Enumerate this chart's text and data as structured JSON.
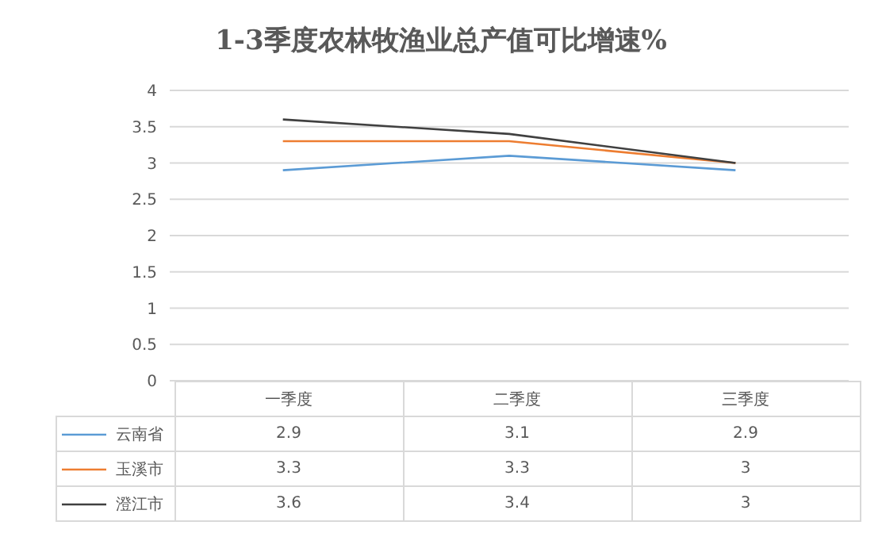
{
  "chart_data": {
    "type": "line",
    "title": "1-3季度农林牧渔业总产值可比增速%",
    "categories": [
      "一季度",
      "二季度",
      "三季度"
    ],
    "series": [
      {
        "name": "云南省",
        "color": "#5b9bd5",
        "values": [
          2.9,
          3.1,
          2.9
        ]
      },
      {
        "name": "玉溪市",
        "color": "#ed7d31",
        "values": [
          3.3,
          3.3,
          3
        ]
      },
      {
        "name": "澄江市",
        "color": "#404040",
        "values": [
          3.6,
          3.4,
          3
        ]
      }
    ],
    "ylim": [
      0,
      4
    ],
    "yticks": [
      0,
      0.5,
      1,
      1.5,
      2,
      2.5,
      3,
      3.5,
      4
    ],
    "grid": "y",
    "legend": "bottom",
    "data_labels": true,
    "marker": "none",
    "line_style": "solid"
  }
}
